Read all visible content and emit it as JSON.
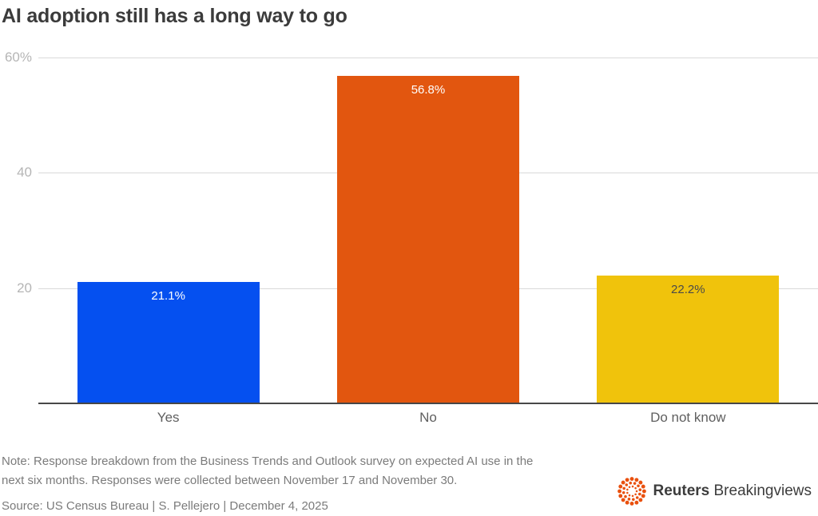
{
  "title": "AI adoption still has a long way to go",
  "chart_data": {
    "type": "bar",
    "categories": [
      "Yes",
      "No",
      "Do not know"
    ],
    "values": [
      21.1,
      56.8,
      22.2
    ],
    "value_labels": [
      "21.1%",
      "56.8%",
      "22.2%"
    ],
    "bar_colors": [
      "#0550f0",
      "#e2560f",
      "#f0c30c"
    ],
    "value_label_colors": [
      "#ffffff",
      "#ffffff",
      "#4a4a4a"
    ],
    "title": "AI adoption still has a long way to go",
    "xlabel": "",
    "ylabel": "",
    "ylim": [
      0,
      60
    ],
    "yticks": [
      {
        "value": 60,
        "label": "60%"
      },
      {
        "value": 40,
        "label": "40"
      },
      {
        "value": 20,
        "label": "20"
      }
    ],
    "grid": true,
    "legend": false
  },
  "note": {
    "line1": "Note: Response breakdown from the Business Trends and Outlook survey on expected AI use in the",
    "line2": "next six months. Responses were collected between November 17 and November 30."
  },
  "source": "Source: US Census Bureau | S. Pellejero | December 4, 2025",
  "branding": {
    "reuters": "Reuters",
    "breakingviews": "Breakingviews",
    "logo_color": "#e9500e"
  },
  "colors": {
    "title_text": "#3b3b3b",
    "gridline": "#d9d9d9",
    "tick_label": "#b5b5b5",
    "axis_line": "#474747",
    "category_label": "#5f5f5f",
    "note_text": "#7b7b7b"
  }
}
